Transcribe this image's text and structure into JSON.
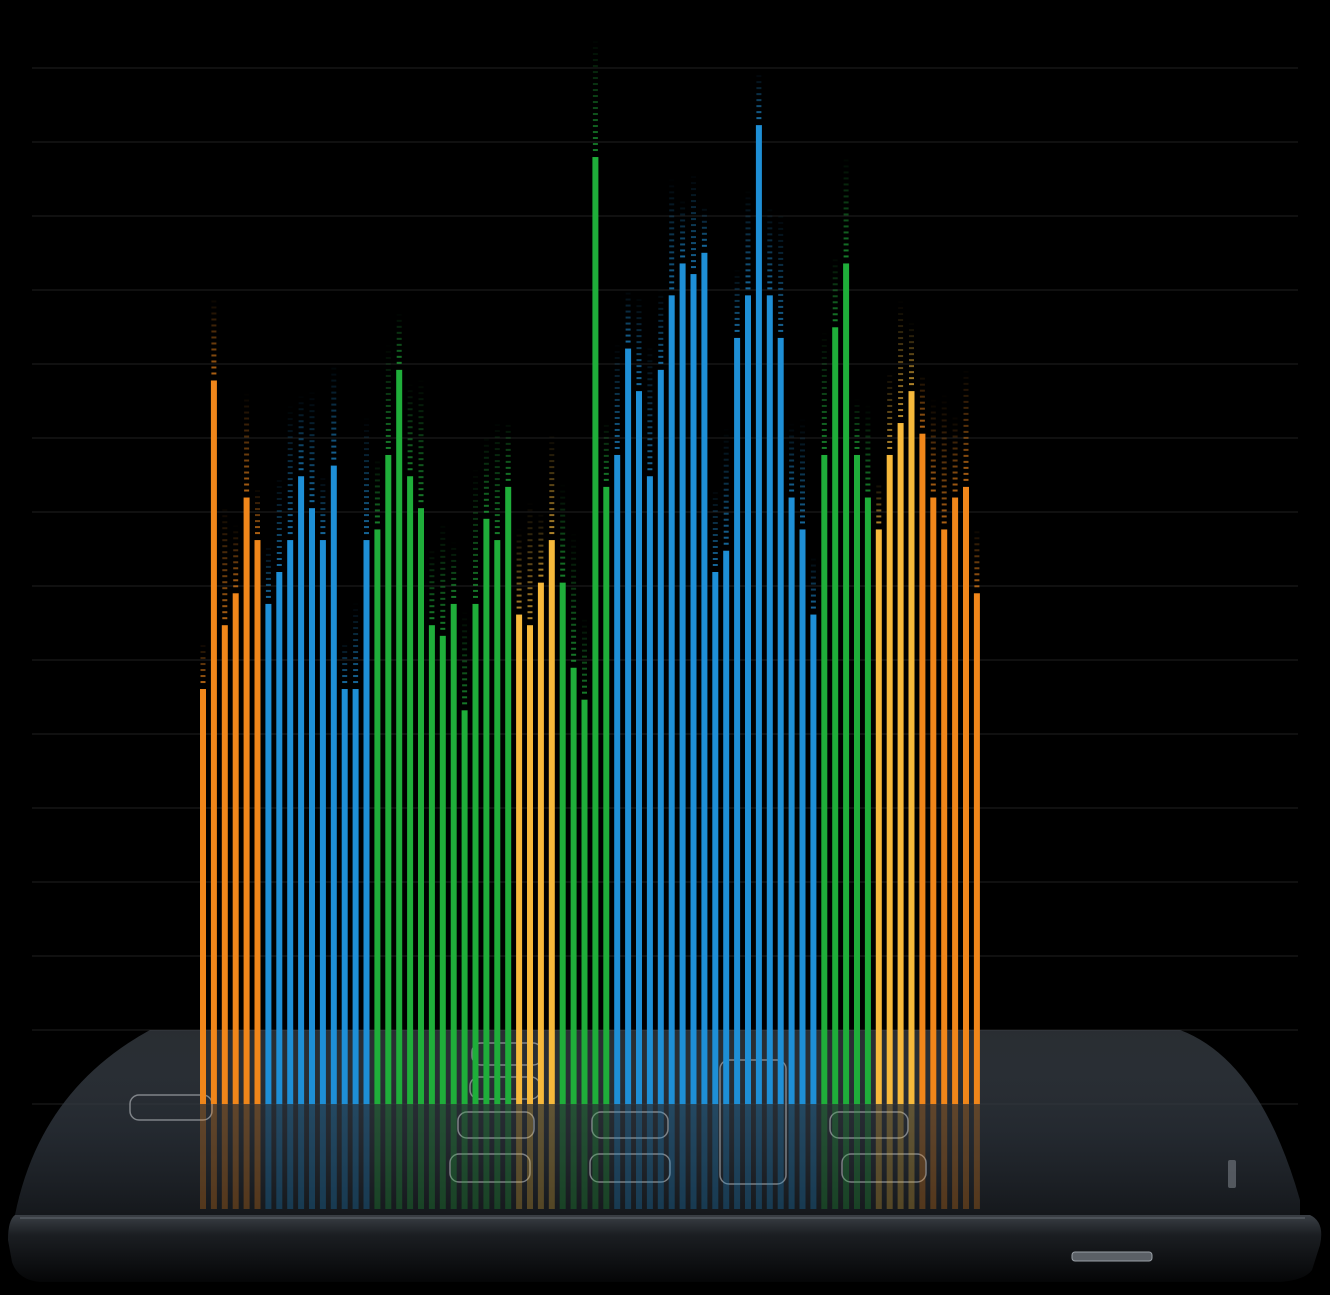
{
  "palette": {
    "orange": "#f0861a",
    "blue": "#1e8fd6",
    "green": "#1fae3a",
    "yellow": "#f6b93b",
    "background": "#000000",
    "phone_body": "#2a2f35",
    "phone_edge": "#111417"
  },
  "icons": {
    "device": "smartphone-icon",
    "app_slots": "rounded-rectangle-outline"
  },
  "chart_data": {
    "type": "bar",
    "grid": true,
    "ylim": [
      0,
      100
    ],
    "series": [
      {
        "color_key": "orange",
        "values": [
          39,
          68,
          45,
          48,
          57,
          53
        ]
      },
      {
        "color_key": "blue",
        "values": [
          47,
          50,
          53,
          59,
          56,
          53,
          60,
          39,
          39,
          53
        ]
      },
      {
        "color_key": "green",
        "values": [
          54,
          61,
          69,
          59,
          56,
          45,
          44,
          47,
          37,
          47,
          55,
          53,
          58
        ]
      },
      {
        "color_key": "yellow",
        "values": [
          46,
          45,
          49,
          53
        ]
      },
      {
        "color_key": "green",
        "values": [
          49,
          41,
          38,
          89,
          58
        ]
      },
      {
        "color_key": "blue",
        "values": [
          61,
          71,
          67,
          59,
          69,
          76,
          79,
          78,
          80,
          50,
          52,
          72,
          76,
          92,
          76,
          72,
          57,
          54,
          46
        ]
      },
      {
        "color_key": "green",
        "values": [
          61,
          73,
          79,
          61,
          57
        ]
      },
      {
        "color_key": "yellow",
        "values": [
          54,
          61,
          64,
          67
        ]
      },
      {
        "color_key": "orange",
        "values": [
          63,
          57,
          54,
          57,
          58,
          48
        ]
      }
    ]
  }
}
